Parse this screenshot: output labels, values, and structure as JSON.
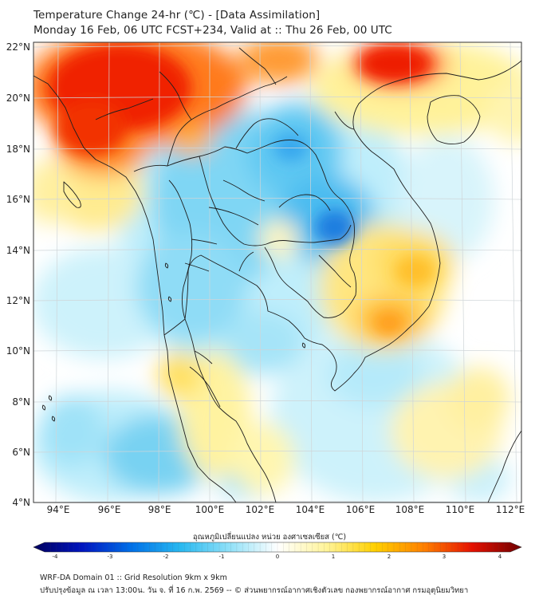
{
  "title": {
    "line1": "Temperature Change 24-hr (℃) - [Data Assimilation]",
    "line2": "Monday 16 Feb, 06 UTC FCST+234, Valid at :: Thu 26 Feb, 00 UTC"
  },
  "axes": {
    "lat_labels": [
      "22°N",
      "20°N",
      "18°N",
      "16°N",
      "14°N",
      "12°N",
      "10°N",
      "8°N",
      "6°N",
      "4°N"
    ],
    "lon_labels": [
      "94°E",
      "96°E",
      "98°E",
      "100°E",
      "102°E",
      "104°E",
      "106°E",
      "108°E",
      "110°E",
      "112°E"
    ]
  },
  "colorbar": {
    "title": "อุณหภูมิเปลี่ยนแปลง หน่วย องศาเซลเซียส (℃)",
    "ticks": [
      "-4",
      "-3",
      "-2",
      "-1",
      "0",
      "1",
      "2",
      "3",
      "4"
    ],
    "colors": [
      "#00005e",
      "#0015c0",
      "#0070e8",
      "#28b8f0",
      "#8ee0f8",
      "#ffffff",
      "#fff49a",
      "#ffd000",
      "#ff8000",
      "#e51000",
      "#6e0000"
    ]
  },
  "footer": {
    "line1": "WRF-DA Domain 01 :: Grid Resolution 9km x 9km",
    "line2": "ปรับปรุงข้อมูล ณ เวลา 13:00น. วัน จ. ที่ 16 ก.พ. 2569 -- © ส่วนพยากรณ์อากาศเชิงตัวเลข กองพยากรณ์อากาศ กรมอุตุนิยมวิทยา"
  }
}
